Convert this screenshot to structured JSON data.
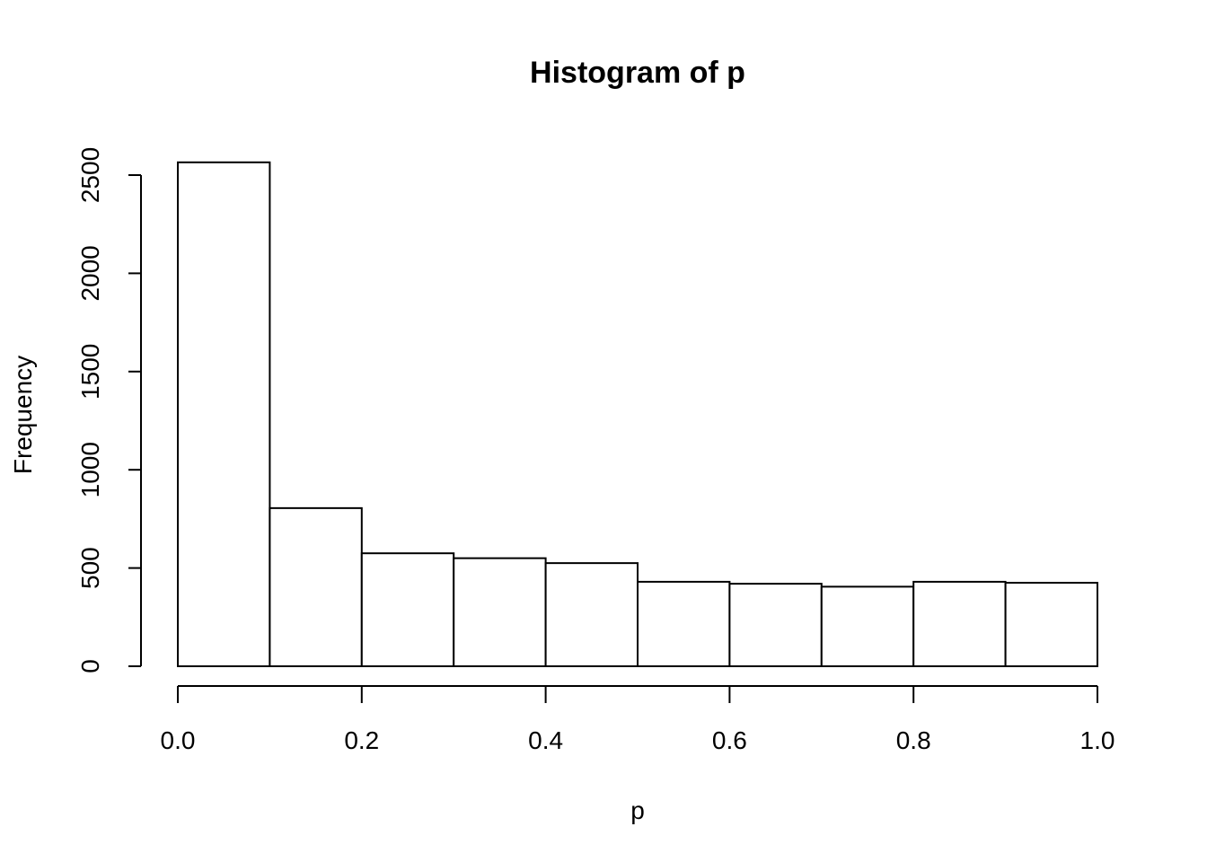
{
  "chart_data": {
    "type": "bar",
    "title": "Histogram of p",
    "xlabel": "p",
    "ylabel": "Frequency",
    "bins": [
      {
        "start": 0.0,
        "end": 0.1,
        "count": 2565
      },
      {
        "start": 0.1,
        "end": 0.2,
        "count": 805
      },
      {
        "start": 0.2,
        "end": 0.3,
        "count": 575
      },
      {
        "start": 0.3,
        "end": 0.4,
        "count": 550
      },
      {
        "start": 0.4,
        "end": 0.5,
        "count": 525
      },
      {
        "start": 0.5,
        "end": 0.6,
        "count": 430
      },
      {
        "start": 0.6,
        "end": 0.7,
        "count": 420
      },
      {
        "start": 0.7,
        "end": 0.8,
        "count": 405
      },
      {
        "start": 0.8,
        "end": 0.9,
        "count": 430
      },
      {
        "start": 0.9,
        "end": 1.0,
        "count": 425
      }
    ],
    "xlim": [
      0.0,
      1.0
    ],
    "ylim": [
      0,
      2500
    ],
    "x_ticks": [
      "0.0",
      "0.2",
      "0.4",
      "0.6",
      "0.8",
      "1.0"
    ],
    "y_ticks": [
      "0",
      "500",
      "1000",
      "1500",
      "2000",
      "2500"
    ],
    "grid": false,
    "colors": {
      "bar_fill": "#ffffff",
      "bar_stroke": "#000000"
    }
  }
}
